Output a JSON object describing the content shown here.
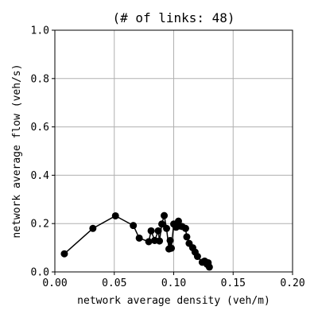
{
  "chart_data": {
    "type": "line",
    "title": "(# of links: 48)",
    "xlabel": "network average density (veh/m)",
    "ylabel": "network average flow (veh/s)",
    "xlim": [
      0.0,
      0.2
    ],
    "ylim": [
      0.0,
      1.0
    ],
    "xticks": [
      0.0,
      0.05,
      0.1,
      0.15,
      0.2
    ],
    "yticks": [
      0.0,
      0.2,
      0.4,
      0.6,
      0.8,
      1.0
    ],
    "xtick_labels": [
      "0.00",
      "0.05",
      "0.10",
      "0.15",
      "0.20"
    ],
    "ytick_labels": [
      "0.0",
      "0.2",
      "0.4",
      "0.6",
      "0.8",
      "1.0"
    ],
    "grid": true,
    "series": [
      {
        "color": "#000000",
        "marker": "circle",
        "x": [
          0.008,
          0.032,
          0.051,
          0.066,
          0.071,
          0.079,
          0.081,
          0.084,
          0.087,
          0.088,
          0.09,
          0.092,
          0.094,
          0.096,
          0.097,
          0.098,
          0.1,
          0.102,
          0.104,
          0.105,
          0.107,
          0.11,
          0.111,
          0.113,
          0.116,
          0.118,
          0.12,
          0.124,
          0.126,
          0.128,
          0.129,
          0.13
        ],
        "y": [
          0.075,
          0.18,
          0.232,
          0.192,
          0.14,
          0.125,
          0.17,
          0.13,
          0.17,
          0.128,
          0.198,
          0.233,
          0.18,
          0.095,
          0.13,
          0.098,
          0.198,
          0.185,
          0.21,
          0.19,
          0.188,
          0.18,
          0.145,
          0.118,
          0.1,
          0.082,
          0.064,
          0.04,
          0.045,
          0.032,
          0.038,
          0.02
        ]
      }
    ]
  }
}
